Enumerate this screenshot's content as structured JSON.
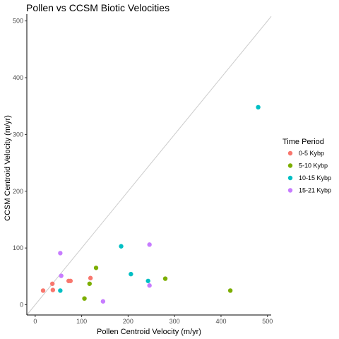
{
  "chart_data": {
    "type": "scatter",
    "title": "Pollen vs CCSM Biotic Velocities",
    "xlabel": "Pollen Centroid Velocity (m/yr)",
    "ylabel": "CCSM Centroid Velocity (m/yr)",
    "xlim": [
      -18,
      508
    ],
    "ylim": [
      -18,
      512
    ],
    "xticks": [
      0,
      100,
      200,
      300,
      400,
      500
    ],
    "yticks": [
      0,
      100,
      200,
      300,
      400,
      500
    ],
    "grid": false,
    "reference_line": "y = x",
    "legend": {
      "title": "Time Period",
      "placement": "right"
    },
    "series": [
      {
        "name": "0-5 Kybp",
        "color": "#F8766D",
        "points": [
          [
            17,
            25
          ],
          [
            37,
            37
          ],
          [
            38,
            26
          ],
          [
            72,
            42
          ],
          [
            76,
            42
          ],
          [
            119,
            47
          ]
        ]
      },
      {
        "name": "5-10 Kybp",
        "color": "#7CAE00",
        "points": [
          [
            106,
            11
          ],
          [
            117,
            37
          ],
          [
            131,
            65
          ],
          [
            280,
            46
          ],
          [
            420,
            25
          ]
        ]
      },
      {
        "name": "10-15 Kybp",
        "color": "#00BFC4",
        "points": [
          [
            54,
            25
          ],
          [
            185,
            103
          ],
          [
            206,
            54
          ],
          [
            243,
            42
          ],
          [
            480,
            348
          ]
        ]
      },
      {
        "name": "15-21 Kybp",
        "color": "#C77CFF",
        "points": [
          [
            54,
            91
          ],
          [
            56,
            51
          ],
          [
            146,
            6
          ],
          [
            246,
            106
          ],
          [
            246,
            34
          ]
        ]
      }
    ]
  }
}
